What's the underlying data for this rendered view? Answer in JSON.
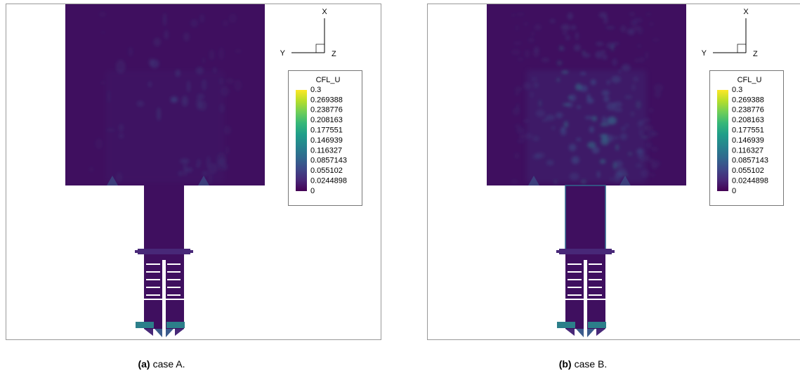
{
  "panels": [
    {
      "axes": {
        "x": "X",
        "y": "Y",
        "z": "Z"
      },
      "colorbar": {
        "title": "CFL_U",
        "labels": [
          "0.3",
          "0.269388",
          "0.238776",
          "0.208163",
          "0.177551",
          "0.146939",
          "0.116327",
          "0.0857143",
          "0.055102",
          "0.0244898",
          "0"
        ]
      },
      "caption": {
        "label": "(a)",
        "text": "case A."
      }
    },
    {
      "axes": {
        "x": "X",
        "y": "Y",
        "z": "Z"
      },
      "colorbar": {
        "title": "CFL_U",
        "labels": [
          "0.3",
          "0.269388",
          "0.238776",
          "0.208163",
          "0.177551",
          "0.146939",
          "0.116327",
          "0.0857143",
          "0.055102",
          "0.0244898",
          "0"
        ]
      },
      "caption": {
        "label": "(b)",
        "text": "case B."
      }
    }
  ]
}
